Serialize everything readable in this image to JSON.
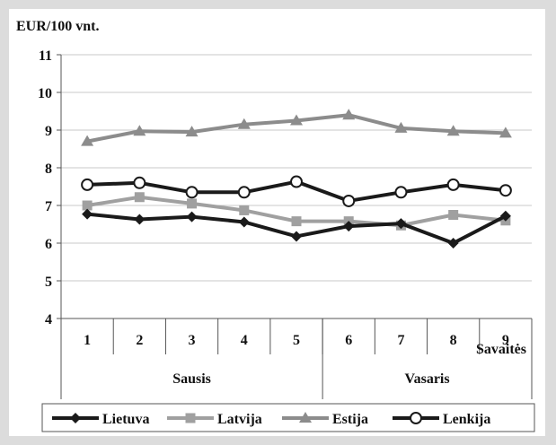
{
  "chart_data": {
    "type": "line",
    "title": "",
    "ylabel": "EUR/100 vnt.",
    "xlabel": "Savaitės",
    "ylim": [
      4,
      11
    ],
    "yticks": [
      4,
      5,
      6,
      7,
      8,
      9,
      10,
      11
    ],
    "categories": [
      "1",
      "2",
      "3",
      "4",
      "5",
      "6",
      "7",
      "8",
      "9"
    ],
    "groups": [
      {
        "label": "Sausis",
        "span": [
          1,
          5
        ]
      },
      {
        "label": "Vasaris",
        "span": [
          6,
          9
        ]
      }
    ],
    "grid": "horizontal",
    "legend_position": "bottom",
    "series": [
      {
        "name": "Lietuva",
        "color": "#1a1a1a",
        "marker": "diamond",
        "values": [
          6.77,
          6.63,
          6.7,
          6.56,
          6.18,
          6.45,
          6.52,
          6.0,
          6.72
        ]
      },
      {
        "name": "Latvija",
        "color": "#a0a0a0",
        "marker": "square",
        "values": [
          7.0,
          7.22,
          7.05,
          6.87,
          6.58,
          6.58,
          6.47,
          6.75,
          6.6
        ]
      },
      {
        "name": "Estija",
        "color": "#8c8c8c",
        "marker": "triangle",
        "values": [
          8.7,
          8.97,
          8.95,
          9.15,
          9.25,
          9.4,
          9.05,
          8.97,
          8.92
        ]
      },
      {
        "name": "Lenkija",
        "color": "#1a1a1a",
        "marker": "circle",
        "values": [
          7.55,
          7.6,
          7.35,
          7.35,
          7.63,
          7.12,
          7.35,
          7.55,
          7.4
        ]
      }
    ]
  }
}
